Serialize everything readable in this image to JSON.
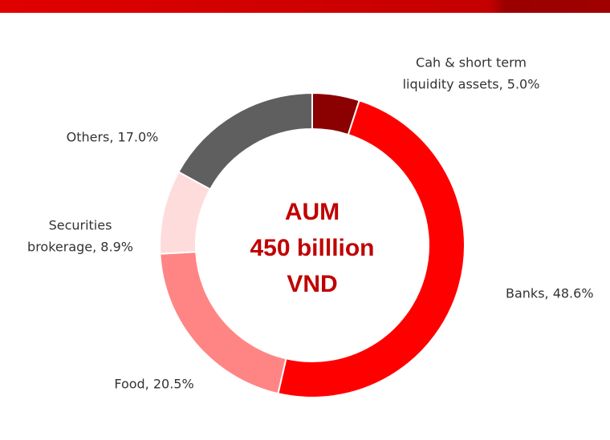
{
  "chart_data": {
    "type": "donut",
    "values": [
      5.0,
      48.6,
      20.5,
      8.9,
      17.0
    ],
    "value_labels": [
      [
        "Cah & short term",
        "liquidity assets, 5.0%"
      ],
      [
        "Banks, 48.6%"
      ],
      [
        "Food, 20.5%"
      ],
      [
        "Securities",
        "brokerage, 8.9%"
      ],
      [
        "Others, 17.0%"
      ]
    ],
    "colors": [
      "#8b0000",
      "#ff0000",
      "#ff8585",
      "#ffdcdc",
      "#5f5f5f"
    ],
    "center_text": [
      "AUM",
      "450 billlion",
      "VND"
    ]
  }
}
